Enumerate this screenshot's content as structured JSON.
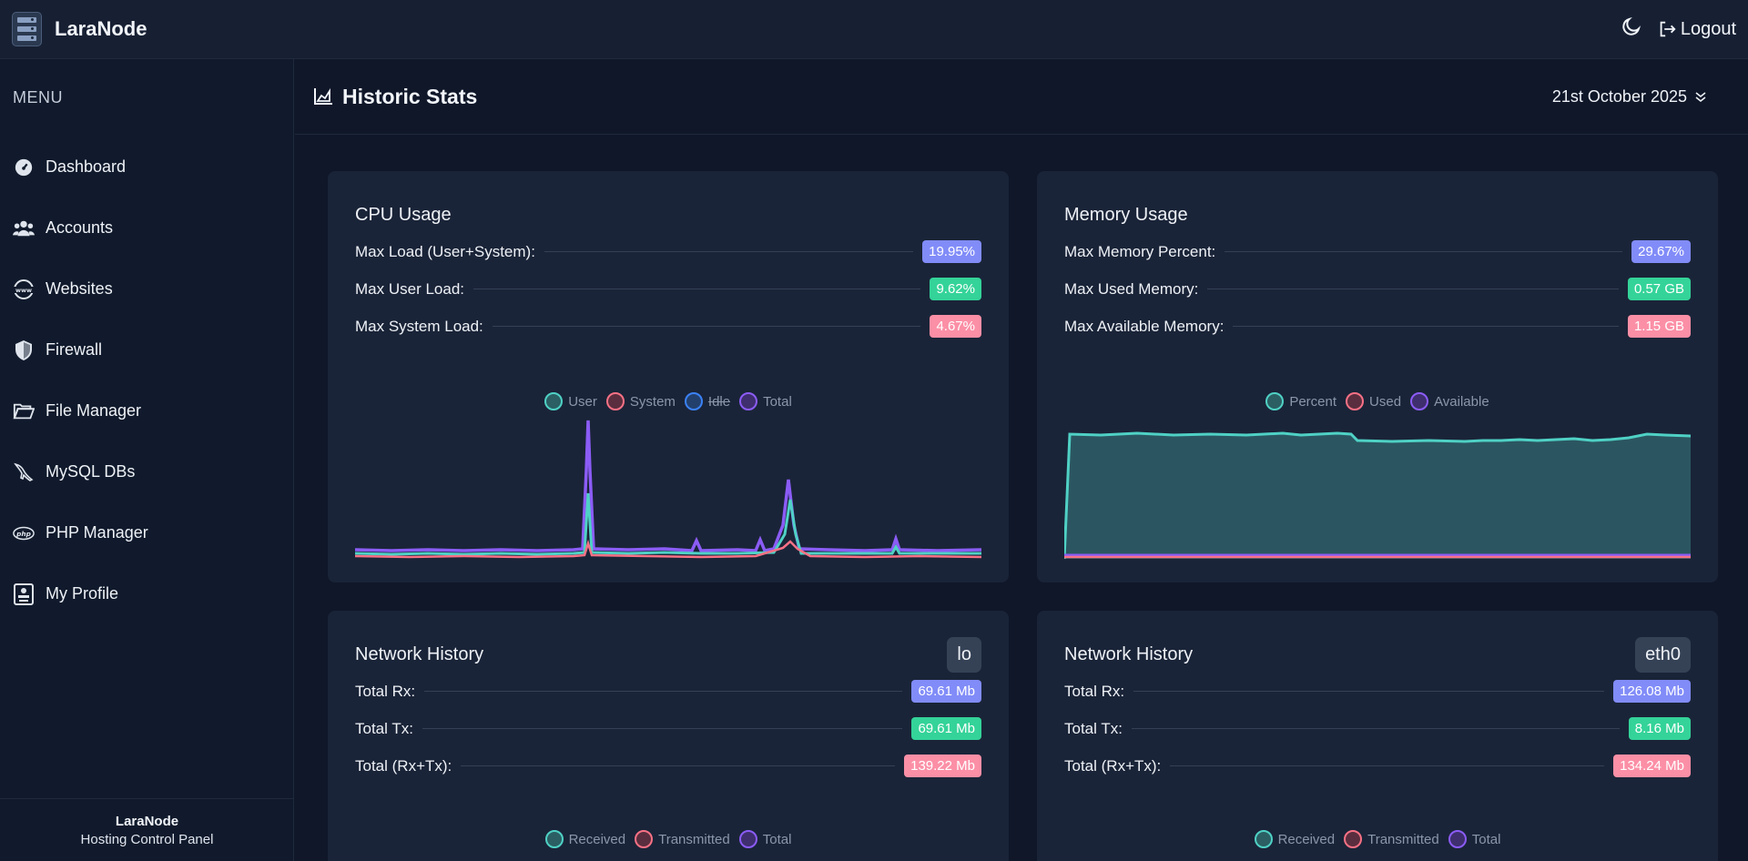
{
  "app": {
    "name": "LaraNode"
  },
  "topbar": {
    "logout_label": "Logout"
  },
  "sidebar": {
    "menu_title": "MENU",
    "items": [
      {
        "label": "Dashboard",
        "icon": "gauge-icon"
      },
      {
        "label": "Accounts",
        "icon": "users-icon"
      },
      {
        "label": "Websites",
        "icon": "globe-www-icon"
      },
      {
        "label": "Firewall",
        "icon": "shield-icon"
      },
      {
        "label": "File Manager",
        "icon": "folder-open-icon"
      },
      {
        "label": "MySQL DBs",
        "icon": "dolphin-icon"
      },
      {
        "label": "PHP Manager",
        "icon": "php-icon"
      },
      {
        "label": "My Profile",
        "icon": "profile-card-icon"
      }
    ],
    "footer_title": "LaraNode",
    "footer_sub": "Hosting Control Panel"
  },
  "header": {
    "title": "Historic Stats",
    "date": "21st October 2025"
  },
  "cpu": {
    "title": "CPU Usage",
    "stats": [
      {
        "label": "Max Load (User+System):",
        "value": "19.95%",
        "color": "purple"
      },
      {
        "label": "Max User Load:",
        "value": "9.62%",
        "color": "green"
      },
      {
        "label": "Max System Load:",
        "value": "4.67%",
        "color": "pink"
      }
    ],
    "legend": [
      "User",
      "System",
      "Idle",
      "Total"
    ]
  },
  "memory": {
    "title": "Memory Usage",
    "stats": [
      {
        "label": "Max Memory Percent:",
        "value": "29.67%",
        "color": "purple"
      },
      {
        "label": "Max Used Memory:",
        "value": "0.57 GB",
        "color": "green"
      },
      {
        "label": "Max Available Memory:",
        "value": "1.15 GB",
        "color": "pink"
      }
    ],
    "legend": [
      "Percent",
      "Used",
      "Available"
    ]
  },
  "net_lo": {
    "title": "Network History",
    "iface": "lo",
    "stats": [
      {
        "label": "Total Rx:",
        "value": "69.61 Mb",
        "color": "purple"
      },
      {
        "label": "Total Tx:",
        "value": "69.61 Mb",
        "color": "green"
      },
      {
        "label": "Total (Rx+Tx):",
        "value": "139.22 Mb",
        "color": "pink"
      }
    ],
    "legend": [
      "Received",
      "Transmitted",
      "Total"
    ]
  },
  "net_eth": {
    "title": "Network History",
    "iface": "eth0",
    "stats": [
      {
        "label": "Total Rx:",
        "value": "126.08 Mb",
        "color": "purple"
      },
      {
        "label": "Total Tx:",
        "value": "8.16 Mb",
        "color": "green"
      },
      {
        "label": "Total (Rx+Tx):",
        "value": "134.24 Mb",
        "color": "pink"
      }
    ],
    "legend": [
      "Received",
      "Transmitted",
      "Total"
    ]
  },
  "colors": {
    "teal": "#4fd1c5",
    "red": "#f87185",
    "blue": "#3b82f6",
    "violet": "#8b5cf6"
  }
}
